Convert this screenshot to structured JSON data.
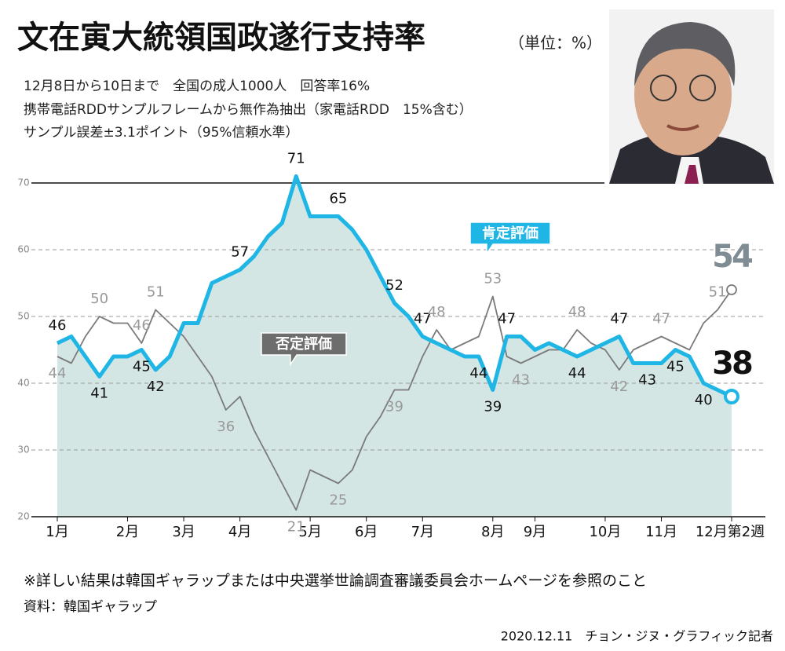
{
  "chart_data": {
    "type": "line",
    "title": "文在寅大統領国政遂行支持率",
    "unit": "（単位：%）",
    "subtitle": [
      "12月8日から10日まで　全国の成人1000人　回答率16%",
      "携帯電話RDDサンプルフレームから無作為抽出（家電話RDD　15%含む）",
      "サンプル誤差±3.1ポイント（95%信頼水準）"
    ],
    "x": [
      0,
      1,
      2,
      3,
      4,
      5,
      6,
      7,
      8,
      9,
      10,
      11,
      12,
      13,
      14,
      15,
      16,
      17,
      18,
      19,
      20,
      21,
      22,
      23,
      24,
      25,
      26,
      27,
      28,
      29,
      30,
      31,
      32,
      33,
      34,
      35,
      36,
      37,
      38,
      39,
      40,
      41,
      42,
      43,
      44,
      45,
      46,
      47,
      48
    ],
    "xlim": [
      0,
      48
    ],
    "xticks": [
      {
        "value": 0,
        "label": "1月"
      },
      {
        "value": 5,
        "label": "2月"
      },
      {
        "value": 9,
        "label": "3月"
      },
      {
        "value": 13,
        "label": "4月"
      },
      {
        "value": 18,
        "label": "5月"
      },
      {
        "value": 22,
        "label": "6月"
      },
      {
        "value": 26,
        "label": "7月"
      },
      {
        "value": 31,
        "label": "8月"
      },
      {
        "value": 34,
        "label": "9月"
      },
      {
        "value": 39,
        "label": "10月"
      },
      {
        "value": 43,
        "label": "11月"
      },
      {
        "value": 48,
        "label": "12月第2週"
      }
    ],
    "ylim": [
      20,
      70
    ],
    "yticks": [
      20,
      30,
      40,
      50,
      60,
      70
    ],
    "grid": true,
    "series": [
      {
        "name": "肯定評価",
        "color": "#1fb6e6",
        "area_color": "#d4e6e4",
        "values": [
          46,
          47,
          44,
          41,
          44,
          44,
          45,
          42,
          44,
          49,
          49,
          55,
          56,
          57,
          59,
          62,
          64,
          71,
          65,
          65,
          65,
          63,
          60,
          56,
          52,
          50,
          47,
          46,
          45,
          44,
          44,
          39,
          47,
          47,
          45,
          46,
          45,
          44,
          45,
          46,
          47,
          43,
          43,
          43,
          45,
          44,
          40,
          39,
          38
        ],
        "labeled": [
          0,
          3,
          6,
          7,
          13,
          17,
          20,
          24,
          26,
          30,
          31,
          32,
          37,
          40,
          42,
          44,
          46,
          48
        ]
      },
      {
        "name": "否定評価",
        "color": "#7a7a7a",
        "values": [
          44,
          43,
          47,
          50,
          49,
          49,
          46,
          51,
          49,
          47,
          44,
          41,
          36,
          38,
          33,
          29,
          25,
          21,
          27,
          26,
          25,
          27,
          32,
          35,
          39,
          39,
          44,
          48,
          45,
          46,
          47,
          53,
          44,
          43,
          44,
          45,
          45,
          48,
          46,
          45,
          42,
          45,
          46,
          47,
          46,
          45,
          49,
          51,
          54
        ],
        "labeled": [
          0,
          3,
          6,
          7,
          12,
          17,
          20,
          24,
          27,
          31,
          33,
          37,
          40,
          43,
          47,
          48
        ]
      }
    ],
    "footnote": "※詳しい結果は韓国ギャラップまたは中央選挙世論調査審議委員会ホームページを参照のこと",
    "source": "資料：韓国ギャラップ",
    "credit": "2020.12.11　チョン・ジヌ・グラフィック記者"
  }
}
